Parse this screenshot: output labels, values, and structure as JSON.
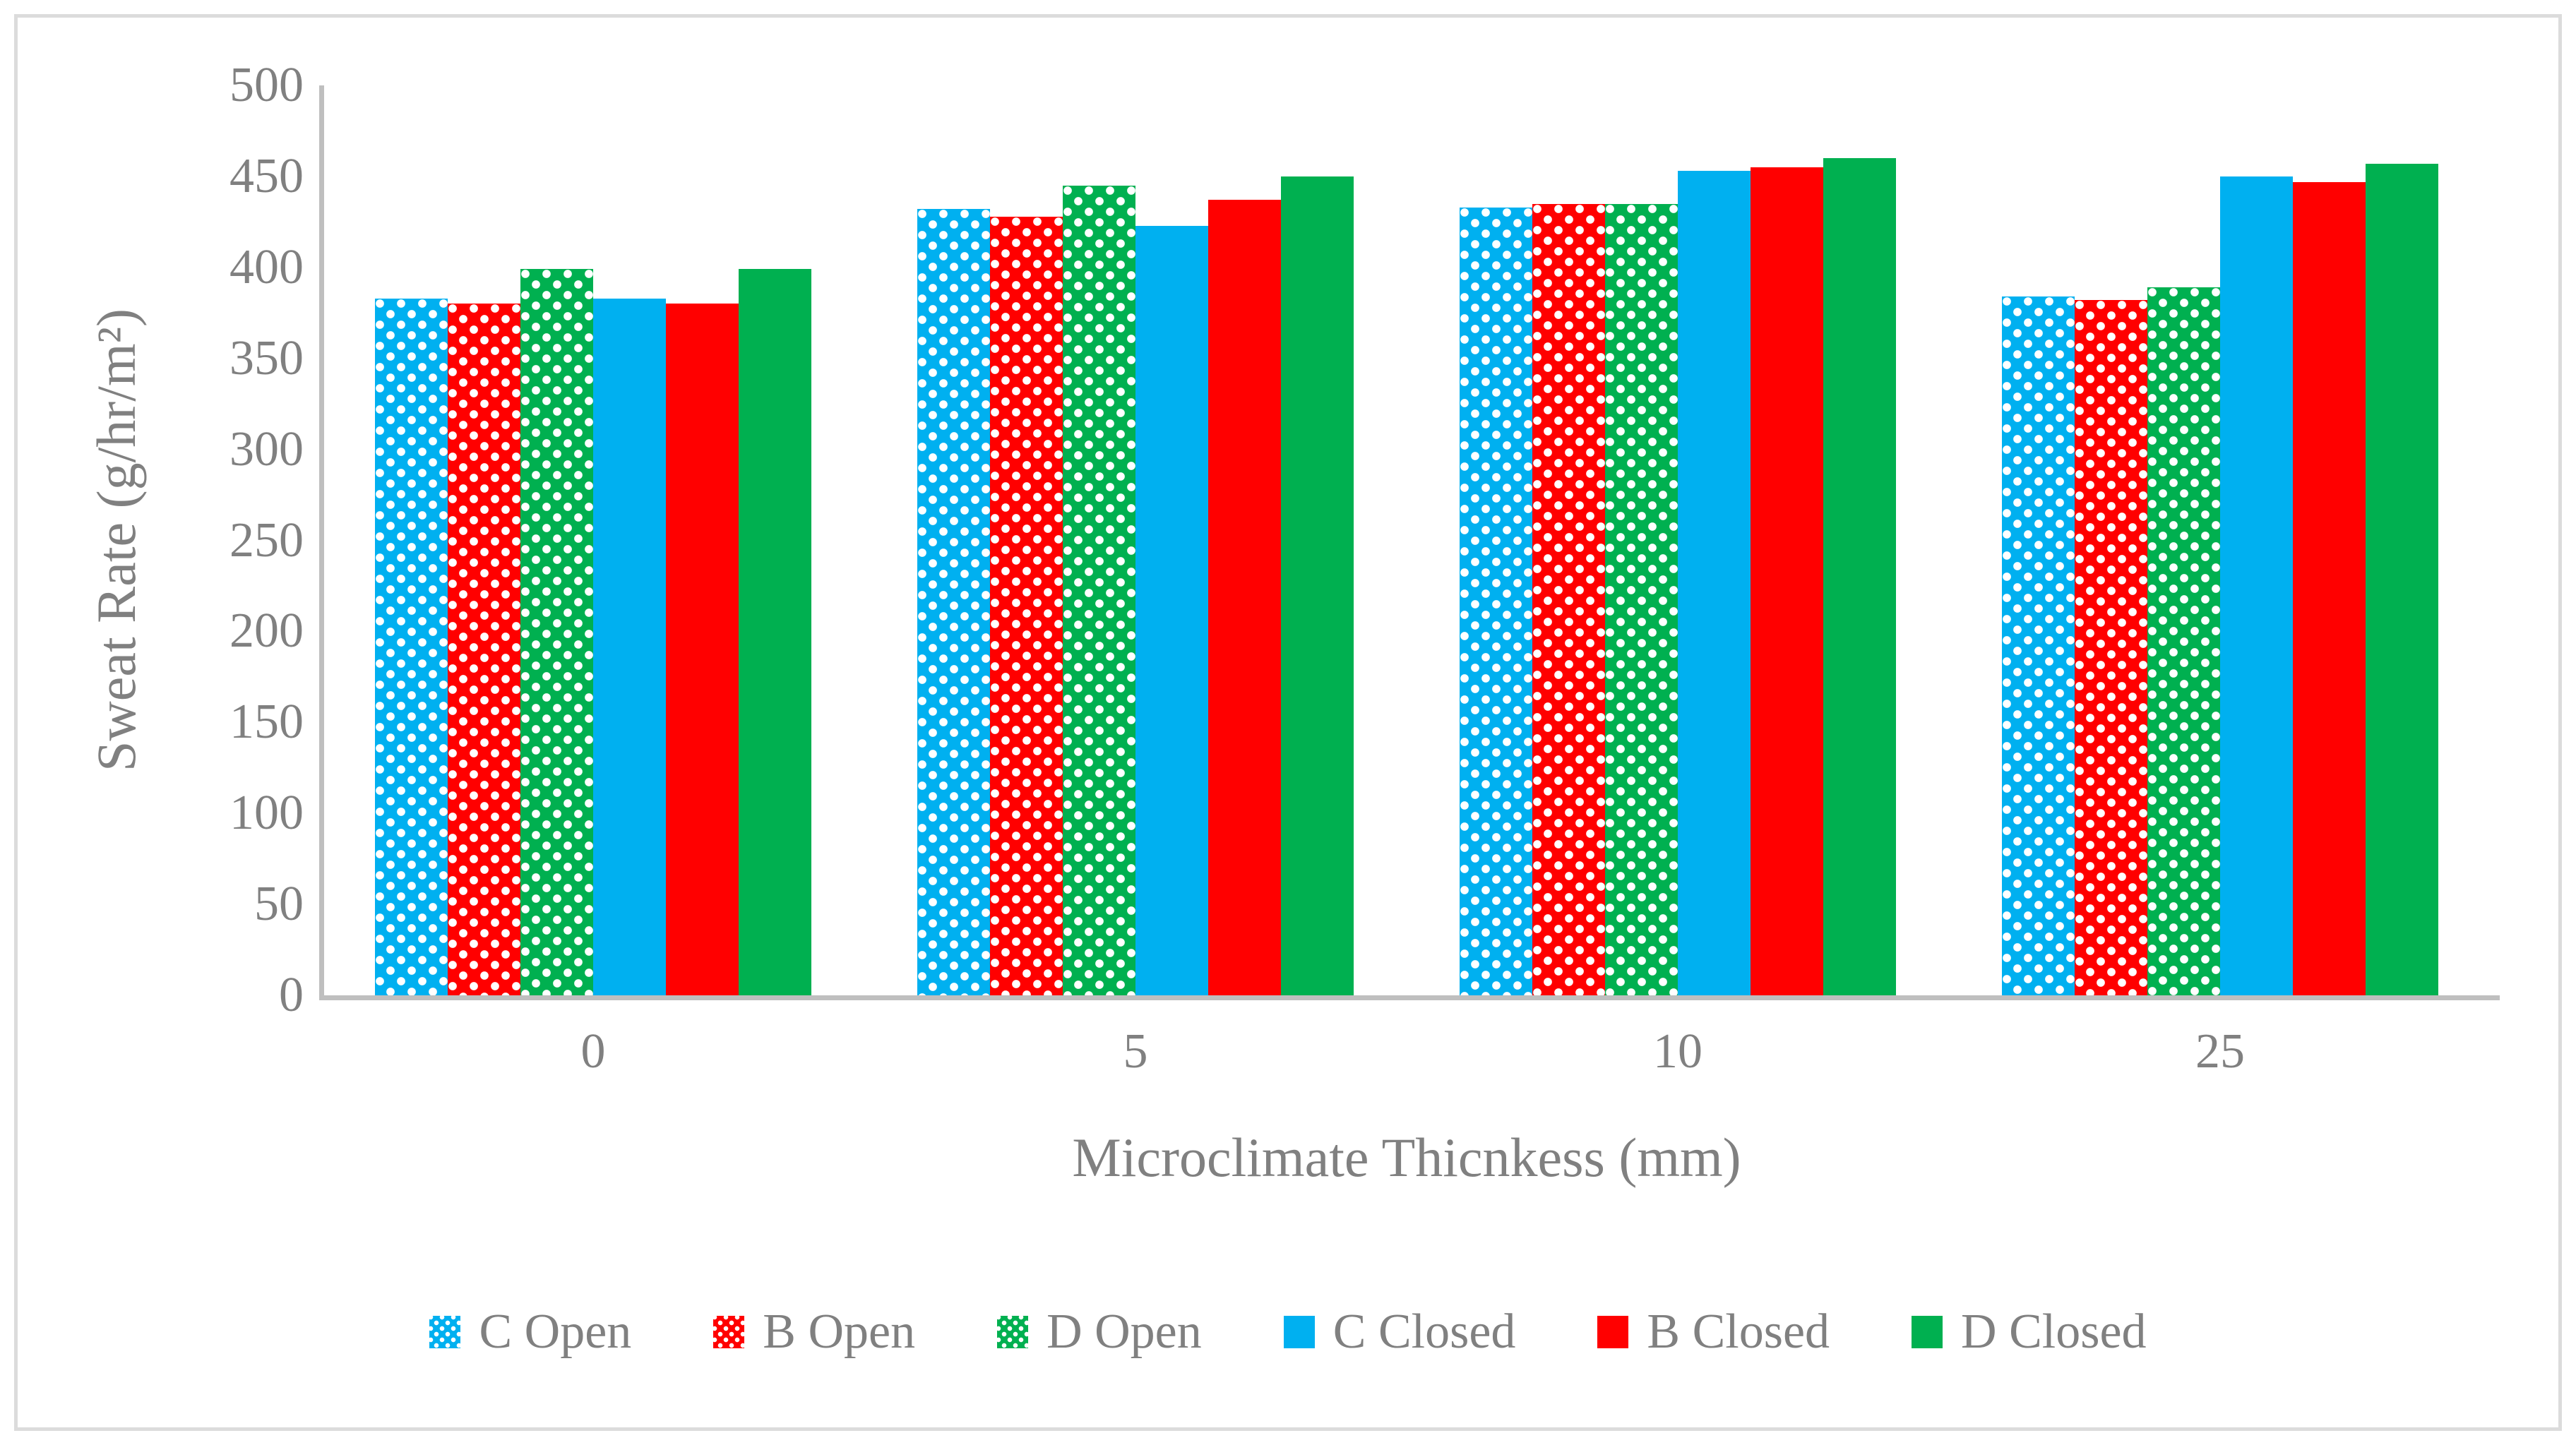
{
  "chart_data": {
    "type": "bar",
    "xlabel": "Microclimate Thicnkess (mm)",
    "ylabel": "Sweat Rate (g/hr/m²)",
    "categories": [
      "0",
      "5",
      "10",
      "25"
    ],
    "series": [
      {
        "name": "C Open",
        "color": "#00B0F0",
        "pattern": "dotted",
        "values": [
          383,
          432,
          433,
          384
        ]
      },
      {
        "name": "B Open",
        "color": "#FF0000",
        "pattern": "dotted",
        "values": [
          380,
          428,
          435,
          382
        ]
      },
      {
        "name": "D Open",
        "color": "#00B050",
        "pattern": "dotted",
        "values": [
          399,
          445,
          435,
          389
        ]
      },
      {
        "name": "C Closed",
        "color": "#00B0F0",
        "pattern": "solid",
        "values": [
          383,
          423,
          453,
          450
        ]
      },
      {
        "name": "B Closed",
        "color": "#FF0000",
        "pattern": "solid",
        "values": [
          380,
          437,
          455,
          447
        ]
      },
      {
        "name": "D Closed",
        "color": "#00B050",
        "pattern": "solid",
        "values": [
          399,
          450,
          460,
          457
        ]
      }
    ],
    "ylim": [
      0,
      500
    ],
    "yticks": [
      0,
      50,
      100,
      150,
      200,
      250,
      300,
      350,
      400,
      450,
      500
    ],
    "grid": false,
    "legend_position": "bottom",
    "axis_color": "#BFBFBF",
    "text_color": "#808080"
  }
}
